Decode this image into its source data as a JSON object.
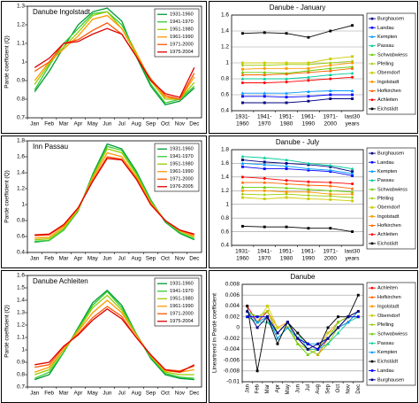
{
  "chart_data": [
    {
      "type": "line",
      "title": "Danube Ingolstadt",
      "y_label": "Pardé coefficient (Q)",
      "legend": "upper right",
      "grid": false,
      "categories": [
        "Jan",
        "Feb",
        "Mar",
        "Apr",
        "May",
        "Jun",
        "Jul",
        "Aug",
        "Sep",
        "Oct",
        "Nov",
        "Dec"
      ],
      "ylim": [
        0.7,
        1.3
      ],
      "yticks": [
        0.7,
        0.8,
        0.9,
        1,
        1.1,
        1.2,
        1.3
      ],
      "series": [
        {
          "name": "1931-1960",
          "color": "#009933",
          "values": [
            0.84,
            0.95,
            1.08,
            1.2,
            1.27,
            1.29,
            1.22,
            1.03,
            0.87,
            0.77,
            0.79,
            0.86
          ]
        },
        {
          "name": "1941-1970",
          "color": "#33cc33",
          "values": [
            0.85,
            0.98,
            1.1,
            1.18,
            1.26,
            1.27,
            1.2,
            1.05,
            0.88,
            0.78,
            0.8,
            0.87
          ]
        },
        {
          "name": "1951-1980",
          "color": "#99cc00",
          "values": [
            0.88,
            0.99,
            1.08,
            1.16,
            1.25,
            1.27,
            1.18,
            1.04,
            0.9,
            0.8,
            0.8,
            0.89
          ]
        },
        {
          "name": "1961-1990",
          "color": "#ff9900",
          "values": [
            0.9,
            1.0,
            1.07,
            1.14,
            1.23,
            1.25,
            1.18,
            1.05,
            0.9,
            0.81,
            0.8,
            0.92
          ]
        },
        {
          "name": "1971-2000",
          "color": "#ff5500",
          "values": [
            0.95,
            1.0,
            1.1,
            1.12,
            1.17,
            1.21,
            1.15,
            1.03,
            0.91,
            0.82,
            0.8,
            0.94
          ]
        },
        {
          "name": "1975-2004",
          "color": "#dd0000",
          "values": [
            0.97,
            1.02,
            1.1,
            1.11,
            1.15,
            1.18,
            1.15,
            1.03,
            0.9,
            0.83,
            0.81,
            0.97
          ]
        }
      ]
    },
    {
      "type": "line",
      "title": "Danube - January",
      "legend": "outside right",
      "grid": true,
      "categories": [
        [
          "1931-",
          "1960"
        ],
        [
          "1941-",
          "1970"
        ],
        [
          "1951-",
          "1980"
        ],
        [
          "1961-",
          "1990"
        ],
        [
          "1971-",
          "2000"
        ],
        [
          "last30",
          "years"
        ]
      ],
      "ylim": [
        0.4,
        1.6
      ],
      "yticks": [
        0.4,
        0.6,
        0.8,
        1,
        1.2,
        1.4,
        1.6
      ],
      "series": [
        {
          "name": "Burghausen",
          "color": "#000080",
          "marker": "square",
          "values": [
            0.5,
            0.5,
            0.5,
            0.52,
            0.55,
            0.55
          ]
        },
        {
          "name": "Landau",
          "color": "#0000ff",
          "marker": "square",
          "values": [
            0.58,
            0.58,
            0.57,
            0.58,
            0.6,
            0.6
          ]
        },
        {
          "name": "Kempten",
          "color": "#0099ff",
          "marker": "triangle",
          "values": [
            0.62,
            0.62,
            0.62,
            0.64,
            0.65,
            0.65
          ]
        },
        {
          "name": "Passau",
          "color": "#00cc99",
          "marker": "triangle",
          "values": [
            0.8,
            0.8,
            0.8,
            0.82,
            0.85,
            0.87
          ]
        },
        {
          "name": "Schwabwiess",
          "color": "#66cc00",
          "marker": "triangle",
          "values": [
            0.88,
            0.88,
            0.87,
            0.9,
            0.93,
            0.95
          ]
        },
        {
          "name": "Pfelling",
          "color": "#99cc00",
          "marker": "diamond",
          "values": [
            0.97,
            0.97,
            0.98,
            0.98,
            1.0,
            1.02
          ]
        },
        {
          "name": "Oberndorf",
          "color": "#cccc00",
          "marker": "square",
          "values": [
            1.0,
            1.0,
            1.0,
            1.0,
            1.05,
            1.08
          ]
        },
        {
          "name": "Ingolstadt",
          "color": "#ff9900",
          "marker": "square",
          "values": [
            0.92,
            0.93,
            0.93,
            0.93,
            0.97,
            1.0
          ]
        },
        {
          "name": "Hofkirchen",
          "color": "#ff6600",
          "marker": "triangle",
          "values": [
            0.85,
            0.85,
            0.86,
            0.88,
            0.9,
            0.93
          ]
        },
        {
          "name": "Achleiten",
          "color": "#ff0000",
          "marker": "circle",
          "values": [
            0.75,
            0.75,
            0.76,
            0.78,
            0.8,
            0.82
          ]
        },
        {
          "name": "Eichstädt",
          "color": "#000000",
          "marker": "square",
          "values": [
            1.37,
            1.38,
            1.37,
            1.32,
            1.4,
            1.47
          ]
        }
      ]
    },
    {
      "type": "line",
      "title": "Inn Passau",
      "y_label": "Pardé coefficient (Q)",
      "legend": "upper right",
      "grid": false,
      "categories": [
        "Jan",
        "Feb",
        "Mar",
        "Apr",
        "May",
        "Jun",
        "Jul",
        "Aug",
        "Sep",
        "Oct",
        "Nov",
        "Dec"
      ],
      "ylim": [
        0.4,
        1.8
      ],
      "yticks": [
        0.4,
        0.6,
        0.8,
        1,
        1.2,
        1.4,
        1.6,
        1.8
      ],
      "series": [
        {
          "name": "1931-1960",
          "color": "#009933",
          "values": [
            0.53,
            0.55,
            0.68,
            0.92,
            1.38,
            1.76,
            1.7,
            1.42,
            1.06,
            0.78,
            0.64,
            0.56
          ]
        },
        {
          "name": "1941-1970",
          "color": "#33cc33",
          "values": [
            0.54,
            0.55,
            0.68,
            0.93,
            1.36,
            1.73,
            1.68,
            1.4,
            1.05,
            0.79,
            0.65,
            0.57
          ]
        },
        {
          "name": "1951-1980",
          "color": "#99cc00",
          "values": [
            0.56,
            0.57,
            0.7,
            0.93,
            1.35,
            1.7,
            1.65,
            1.38,
            1.03,
            0.8,
            0.67,
            0.59
          ]
        },
        {
          "name": "1961-1990",
          "color": "#ff9900",
          "values": [
            0.58,
            0.59,
            0.72,
            0.95,
            1.33,
            1.65,
            1.6,
            1.35,
            1.02,
            0.8,
            0.67,
            0.6
          ]
        },
        {
          "name": "1971-2000",
          "color": "#ff5500",
          "values": [
            0.61,
            0.62,
            0.74,
            0.96,
            1.3,
            1.6,
            1.57,
            1.33,
            1.0,
            0.8,
            0.68,
            0.62
          ]
        },
        {
          "name": "1976-2005",
          "color": "#dd0000",
          "values": [
            0.62,
            0.63,
            0.75,
            0.96,
            1.29,
            1.58,
            1.56,
            1.32,
            1.0,
            0.8,
            0.68,
            0.63
          ]
        }
      ]
    },
    {
      "type": "line",
      "title": "Danube - July",
      "legend": "outside right",
      "grid": true,
      "categories": [
        [
          "1931-",
          "1960"
        ],
        [
          "1941-",
          "1970"
        ],
        [
          "1951-",
          "1980"
        ],
        [
          "1961-",
          "1990"
        ],
        [
          "1971-",
          "2000"
        ],
        [
          "last30",
          "years"
        ]
      ],
      "ylim": [
        0.4,
        1.8
      ],
      "yticks": [
        0.4,
        0.6,
        0.8,
        1,
        1.2,
        1.4,
        1.6,
        1.8
      ],
      "series": [
        {
          "name": "Burghausen",
          "color": "#000080",
          "marker": "square",
          "values": [
            1.65,
            1.62,
            1.6,
            1.58,
            1.55,
            1.48
          ]
        },
        {
          "name": "Landau",
          "color": "#0000ff",
          "marker": "square",
          "values": [
            1.55,
            1.52,
            1.52,
            1.5,
            1.48,
            1.42
          ]
        },
        {
          "name": "Kempten",
          "color": "#0099ff",
          "marker": "triangle",
          "values": [
            1.6,
            1.58,
            1.56,
            1.52,
            1.5,
            1.45
          ]
        },
        {
          "name": "Passau",
          "color": "#00cc99",
          "marker": "triangle",
          "values": [
            1.7,
            1.68,
            1.65,
            1.6,
            1.57,
            1.52
          ]
        },
        {
          "name": "Schwabwiess",
          "color": "#66cc00",
          "marker": "triangle",
          "values": [
            1.25,
            1.25,
            1.24,
            1.22,
            1.2,
            1.18
          ]
        },
        {
          "name": "Pfelling",
          "color": "#99cc00",
          "marker": "diamond",
          "values": [
            1.15,
            1.14,
            1.15,
            1.13,
            1.12,
            1.1
          ]
        },
        {
          "name": "Oberndorf",
          "color": "#cccc00",
          "marker": "square",
          "values": [
            1.1,
            1.08,
            1.1,
            1.08,
            1.07,
            1.05
          ]
        },
        {
          "name": "Ingolstadt",
          "color": "#ff9900",
          "marker": "square",
          "values": [
            1.2,
            1.2,
            1.18,
            1.18,
            1.15,
            1.15
          ]
        },
        {
          "name": "Hofkirchen",
          "color": "#ff6600",
          "marker": "triangle",
          "values": [
            1.32,
            1.32,
            1.3,
            1.28,
            1.27,
            1.23
          ]
        },
        {
          "name": "Achleiten",
          "color": "#ff0000",
          "marker": "circle",
          "values": [
            1.4,
            1.38,
            1.35,
            1.33,
            1.32,
            1.3
          ]
        },
        {
          "name": "Eichstädt",
          "color": "#000000",
          "marker": "square",
          "values": [
            0.68,
            0.67,
            0.67,
            0.65,
            0.65,
            0.6
          ]
        }
      ]
    },
    {
      "type": "line",
      "title": "Danube Achleiten",
      "y_label": "Pardé coefficient (Q)",
      "legend": "upper right",
      "grid": false,
      "categories": [
        "Jan",
        "Feb",
        "Mar",
        "Apr",
        "May",
        "Jun",
        "Jul",
        "Aug",
        "Sep",
        "Oct",
        "Nov",
        "Dec"
      ],
      "ylim": [
        0.7,
        1.6
      ],
      "yticks": [
        0.7,
        0.8,
        0.9,
        1,
        1.1,
        1.2,
        1.3,
        1.4,
        1.5,
        1.6
      ],
      "series": [
        {
          "name": "1931-1960",
          "color": "#009933",
          "values": [
            0.76,
            0.8,
            0.98,
            1.18,
            1.38,
            1.48,
            1.36,
            1.13,
            0.93,
            0.8,
            0.77,
            0.76
          ]
        },
        {
          "name": "1941-1970",
          "color": "#33cc33",
          "values": [
            0.77,
            0.82,
            0.98,
            1.17,
            1.36,
            1.47,
            1.34,
            1.13,
            0.94,
            0.81,
            0.78,
            0.77
          ]
        },
        {
          "name": "1951-1980",
          "color": "#99cc00",
          "values": [
            0.8,
            0.84,
            1.0,
            1.16,
            1.34,
            1.44,
            1.32,
            1.12,
            0.95,
            0.82,
            0.8,
            0.8
          ]
        },
        {
          "name": "1961-1990",
          "color": "#ff9900",
          "values": [
            0.82,
            0.86,
            1.0,
            1.15,
            1.3,
            1.4,
            1.3,
            1.12,
            0.95,
            0.83,
            0.82,
            0.84
          ]
        },
        {
          "name": "1971-2000",
          "color": "#ff5500",
          "values": [
            0.86,
            0.88,
            1.02,
            1.13,
            1.26,
            1.35,
            1.27,
            1.1,
            0.96,
            0.84,
            0.83,
            0.87
          ]
        },
        {
          "name": "1975-2004",
          "color": "#dd0000",
          "values": [
            0.88,
            0.9,
            1.03,
            1.12,
            1.24,
            1.33,
            1.25,
            1.1,
            0.96,
            0.84,
            0.82,
            0.88
          ]
        }
      ]
    },
    {
      "type": "line",
      "title": "Danube",
      "y_label": "Lineartrend in Pardé coefficient",
      "legend": "outside right",
      "grid": true,
      "xtick_rotation": 90,
      "categories": [
        "Jan",
        "Feb",
        "Mar",
        "Apr",
        "May",
        "Jun",
        "Jul",
        "Aug",
        "Sep",
        "Oct",
        "Nov",
        "Dec"
      ],
      "ylim": [
        -0.01,
        0.008
      ],
      "yticks": [
        -0.01,
        -0.008,
        -0.006,
        -0.004,
        -0.002,
        0,
        0.002,
        0.004,
        0.006,
        0.008
      ],
      "series": [
        {
          "name": "Achleiten",
          "color": "#ff0000",
          "marker": "circle",
          "values": [
            0.004,
            0.001,
            0.003,
            -0.001,
            0.001,
            -0.002,
            -0.004,
            -0.004,
            -0.002,
            0.0,
            0.001,
            0.003
          ]
        },
        {
          "name": "Hofkirchen",
          "color": "#ff6600",
          "marker": "triangle",
          "values": [
            0.003,
            0.001,
            0.002,
            -0.001,
            0.001,
            -0.002,
            -0.004,
            -0.005,
            -0.002,
            0.0,
            0.002,
            0.003
          ]
        },
        {
          "name": "Ingolstadt",
          "color": "#ff9900",
          "marker": "square",
          "values": [
            0.002,
            0.002,
            0.003,
            0.0,
            0.001,
            -0.001,
            -0.003,
            -0.004,
            -0.001,
            0.001,
            0.002,
            0.002
          ]
        },
        {
          "name": "Oberndorf",
          "color": "#cccc00",
          "marker": "square",
          "values": [
            0.002,
            0.001,
            0.004,
            0.0,
            0.0,
            -0.002,
            -0.003,
            -0.004,
            -0.001,
            0.0,
            0.002,
            0.002
          ]
        },
        {
          "name": "Pfelling",
          "color": "#99cc00",
          "marker": "diamond",
          "values": [
            0.003,
            0.002,
            0.003,
            -0.001,
            0.001,
            -0.003,
            -0.004,
            -0.005,
            -0.003,
            0.0,
            0.002,
            0.003
          ]
        },
        {
          "name": "Schwabwiess",
          "color": "#66cc00",
          "marker": "triangle",
          "values": [
            0.003,
            0.002,
            0.002,
            -0.002,
            0.0,
            -0.003,
            -0.005,
            -0.004,
            -0.002,
            0.001,
            0.002,
            0.002
          ]
        },
        {
          "name": "Passau",
          "color": "#00cc99",
          "marker": "triangle",
          "values": [
            0.002,
            0.001,
            0.001,
            -0.001,
            0.001,
            -0.001,
            -0.004,
            -0.004,
            -0.003,
            -0.001,
            0.001,
            0.002
          ]
        },
        {
          "name": "Kempten",
          "color": "#0099ff",
          "marker": "triangle",
          "values": [
            0.003,
            0.001,
            0.002,
            -0.002,
            0.0,
            -0.002,
            -0.003,
            -0.003,
            -0.002,
            0.0,
            0.001,
            0.003
          ]
        },
        {
          "name": "Eichstädt",
          "color": "#000000",
          "marker": "square",
          "values": [
            0.004,
            -0.008,
            0.002,
            -0.003,
            0.001,
            -0.001,
            -0.003,
            -0.004,
            0.0,
            0.002,
            0.002,
            0.006
          ]
        },
        {
          "name": "Landau",
          "color": "#0000ff",
          "marker": "square",
          "values": [
            0.002,
            0.002,
            0.002,
            -0.001,
            0.001,
            -0.002,
            -0.003,
            -0.004,
            -0.002,
            0.0,
            0.002,
            0.002
          ]
        },
        {
          "name": "Burghausen",
          "color": "#000080",
          "marker": "square",
          "values": [
            0.003,
            0.0,
            0.002,
            -0.001,
            0.001,
            -0.002,
            -0.004,
            -0.003,
            -0.002,
            0.0,
            0.002,
            0.003
          ]
        }
      ]
    }
  ]
}
